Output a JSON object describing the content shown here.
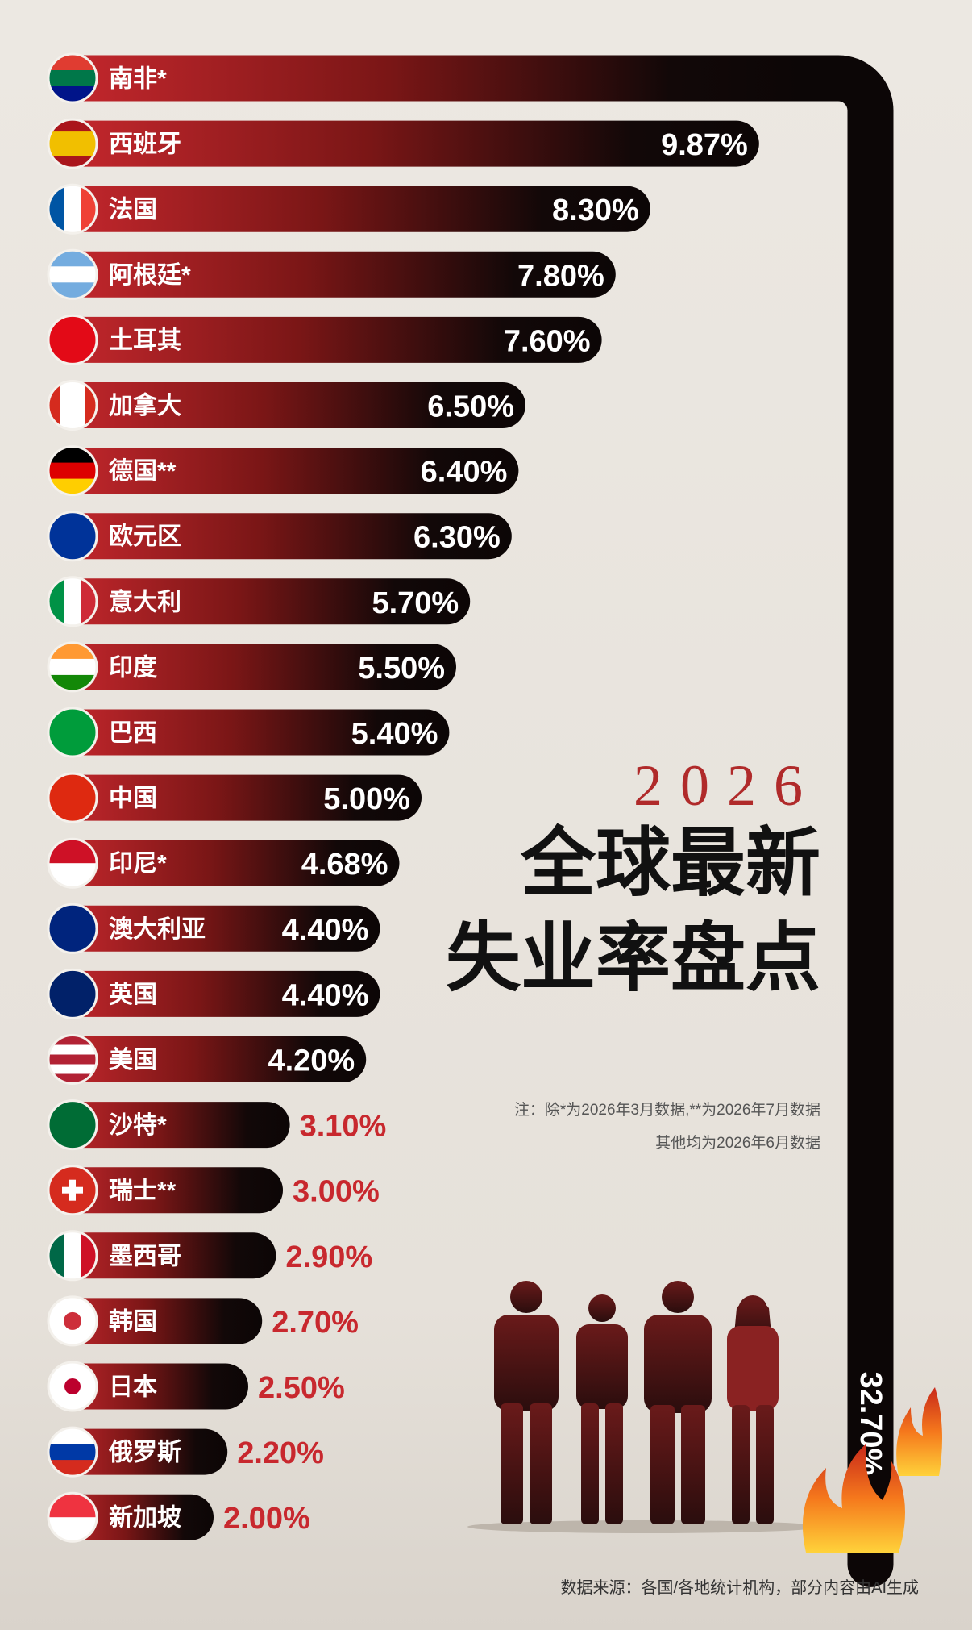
{
  "chart_data": {
    "type": "bar",
    "orientation": "horizontal",
    "subtitle": "2026",
    "title_lines": [
      "全球最新",
      "失业率盘点"
    ],
    "notes": [
      "注：除*为2026年3月数据,**为2026年7月数据",
      "其他均为2026年6月数据"
    ],
    "source": "数据来源：各国/各地统计机构，部分内容由AI生成",
    "categories": [
      "南非*",
      "西班牙",
      "法国",
      "阿根廷*",
      "土耳其",
      "加拿大",
      "德国**",
      "欧元区",
      "意大利",
      "印度",
      "巴西",
      "中国",
      "印尼*",
      "澳大利亚",
      "英国",
      "美国",
      "沙特*",
      "瑞士**",
      "墨西哥",
      "韩国",
      "日本",
      "俄罗斯",
      "新加坡"
    ],
    "values": [
      32.7,
      9.87,
      8.3,
      7.8,
      7.6,
      6.5,
      6.4,
      6.3,
      5.7,
      5.5,
      5.4,
      5.0,
      4.68,
      4.4,
      4.4,
      4.2,
      3.1,
      3.0,
      2.9,
      2.7,
      2.5,
      2.2,
      2.0
    ],
    "value_labels": [
      "32.70%",
      "9.87%",
      "8.30%",
      "7.80%",
      "7.60%",
      "6.50%",
      "6.40%",
      "6.30%",
      "5.70%",
      "5.50%",
      "5.40%",
      "5.00%",
      "4.68%",
      "4.40%",
      "4.40%",
      "4.20%",
      "3.10%",
      "3.00%",
      "2.90%",
      "2.70%",
      "2.50%",
      "2.20%",
      "2.00%"
    ],
    "color": "#c8282e"
  }
}
